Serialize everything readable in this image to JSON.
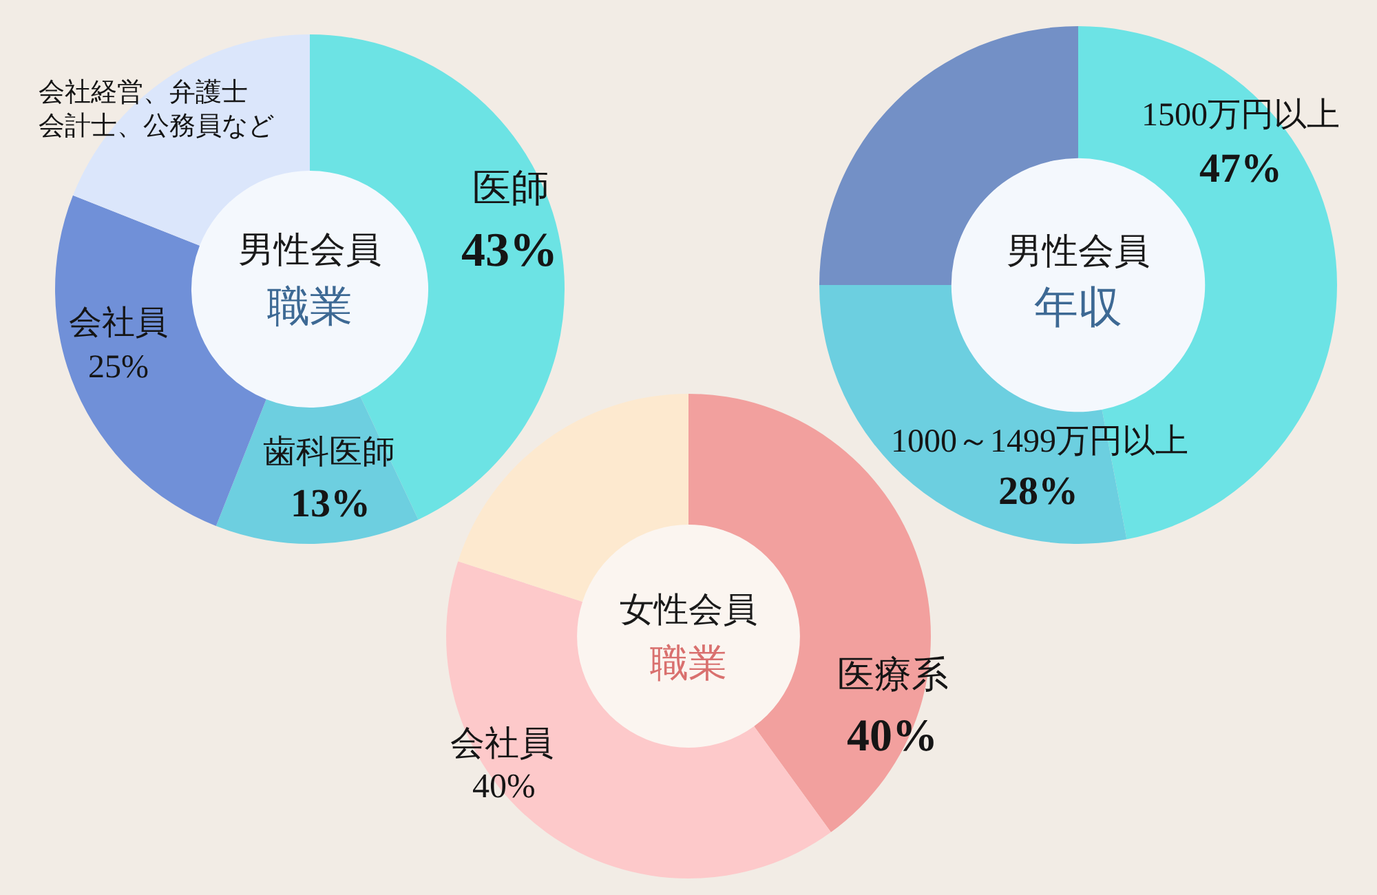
{
  "chart_data": [
    {
      "type": "donut",
      "title": "男性会員",
      "subtitle": "職業",
      "categories": [
        "医師",
        "歯科医師",
        "会社員",
        "会社経営、弁護士会計士、公務員など"
      ],
      "values": [
        43,
        13,
        25,
        19
      ],
      "value_labels": [
        "43%",
        "13%",
        "25%",
        null
      ],
      "colors": [
        "#6ce3e4",
        "#6dcfe0",
        "#7090d8",
        "#dbe6fb"
      ]
    },
    {
      "type": "donut",
      "title": "男性会員",
      "subtitle": "年収",
      "categories": [
        "1500万円以上",
        "1000～1499万円以上",
        null
      ],
      "values": [
        47,
        28,
        25
      ],
      "value_labels": [
        "47%",
        "28%",
        null
      ],
      "colors": [
        "#6ce3e5",
        "#6ccfe0",
        "#7390c6"
      ]
    },
    {
      "type": "donut",
      "title": "女性会員",
      "subtitle": "職業",
      "categories": [
        "医療系",
        "会社員",
        null
      ],
      "values": [
        40,
        40,
        20
      ],
      "value_labels": [
        "40%",
        "40%",
        null
      ],
      "colors": [
        "#f2a09e",
        "#fdc9ca",
        "#fde9cf"
      ]
    }
  ]
}
